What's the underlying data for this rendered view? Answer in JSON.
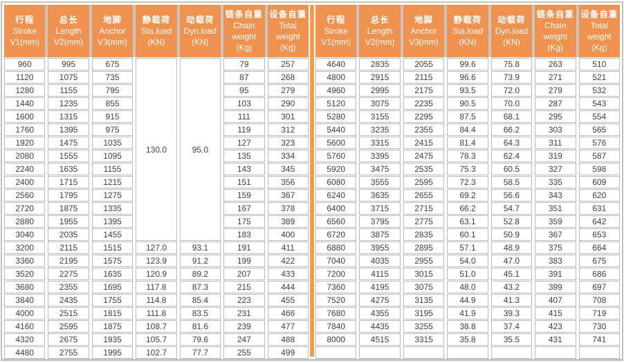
{
  "document_type": "load-specification-table",
  "colors": {
    "header_orange": "#F0924F",
    "divider_orange": "#F19C4F",
    "grid_gray": "#C6C6C6",
    "frame_gray": "#C2C2C2",
    "cell_border": "#B9B9B9",
    "text": "#3F3F3F",
    "header_text": "#FFFFFF"
  },
  "columns": [
    {
      "lines": [
        "行程",
        "Stroke",
        "V1(mm)"
      ]
    },
    {
      "lines": [
        "总长",
        "Length",
        "V2(mm)"
      ]
    },
    {
      "lines": [
        "地脚",
        "Anchor",
        "V3(mm)"
      ]
    },
    {
      "lines": [
        "静载荷",
        "Sta.load",
        "(KN)"
      ]
    },
    {
      "lines": [
        "动载荷",
        "Dyn.load",
        "(KN)"
      ]
    },
    {
      "lines": [
        "链条自重",
        "Chain",
        "weight",
        "(Kg)"
      ]
    },
    {
      "lines": [
        "设备自重",
        "Total",
        "weight",
        "(Kg)"
      ]
    }
  ],
  "left_table": {
    "merged_note": "Sta.load 130.0 and Dyn.load 95.0 span rows 1-14",
    "rows": [
      [
        "960",
        "995",
        "675",
        {
          "v": "130.0",
          "rowspan": 14
        },
        {
          "v": "95.0",
          "rowspan": 14
        },
        "79",
        "257"
      ],
      [
        "1120",
        "1075",
        "735",
        "87",
        "268"
      ],
      [
        "1280",
        "1155",
        "795",
        "95",
        "279"
      ],
      [
        "1440",
        "1235",
        "855",
        "103",
        "290"
      ],
      [
        "1600",
        "1315",
        "915",
        "111",
        "301"
      ],
      [
        "1760",
        "1395",
        "975",
        "119",
        "312"
      ],
      [
        "1920",
        "1475",
        "1035",
        "127",
        "323"
      ],
      [
        "2080",
        "1555",
        "1095",
        "135",
        "334"
      ],
      [
        "2240",
        "1635",
        "1155",
        "143",
        "345"
      ],
      [
        "2400",
        "1715",
        "1215",
        "151",
        "356"
      ],
      [
        "2560",
        "1795",
        "1275",
        "159",
        "367"
      ],
      [
        "2720",
        "1875",
        "1335",
        "167",
        "378"
      ],
      [
        "2880",
        "1955",
        "1395",
        "175",
        "389"
      ],
      [
        "3040",
        "2035",
        "1455",
        "183",
        "400"
      ],
      [
        "3200",
        "2115",
        "1515",
        "127.0",
        "93.1",
        "191",
        "411"
      ],
      [
        "3360",
        "2195",
        "1575",
        "123.9",
        "91.2",
        "199",
        "422"
      ],
      [
        "3520",
        "2275",
        "1635",
        "120.9",
        "89.2",
        "207",
        "433"
      ],
      [
        "3680",
        "2355",
        "1695",
        "117.8",
        "87.3",
        "215",
        "444"
      ],
      [
        "3840",
        "2435",
        "1755",
        "114.8",
        "85.4",
        "223",
        "455"
      ],
      [
        "4000",
        "2515",
        "1815",
        "111.8",
        "83.5",
        "231",
        "466"
      ],
      [
        "4160",
        "2595",
        "1875",
        "108.7",
        "81.6",
        "239",
        "477"
      ],
      [
        "4320",
        "2675",
        "1935",
        "105.7",
        "79.6",
        "247",
        "488"
      ],
      [
        "4480",
        "2755",
        "1995",
        "102.7",
        "77.7",
        "255",
        "499"
      ]
    ]
  },
  "right_table": {
    "rows": [
      [
        "4640",
        "2835",
        "2055",
        "99.6",
        "75.8",
        "263",
        "510"
      ],
      [
        "4800",
        "2915",
        "2115",
        "96.6",
        "73.9",
        "271",
        "521"
      ],
      [
        "4960",
        "2995",
        "2175",
        "93.5",
        "72.0",
        "279",
        "532"
      ],
      [
        "5120",
        "3075",
        "2235",
        "90.5",
        "70.0",
        "287",
        "543"
      ],
      [
        "5280",
        "3155",
        "2295",
        "87.5",
        "68.1",
        "295",
        "554"
      ],
      [
        "5440",
        "3235",
        "2355",
        "84.4",
        "66.2",
        "303",
        "565"
      ],
      [
        "5600",
        "3315",
        "2415",
        "81.4",
        "64.3",
        "311",
        "576"
      ],
      [
        "5760",
        "3395",
        "2475",
        "78.3",
        "62.4",
        "319",
        "587"
      ],
      [
        "5920",
        "3475",
        "2535",
        "75.3",
        "60.5",
        "327",
        "598"
      ],
      [
        "6080",
        "3555",
        "2595",
        "72.3",
        "58.5",
        "335",
        "609"
      ],
      [
        "6240",
        "3635",
        "2655",
        "69.2",
        "56.6",
        "343",
        "620"
      ],
      [
        "6400",
        "3715",
        "2715",
        "66.2",
        "54.7",
        "351",
        "631"
      ],
      [
        "6560",
        "3795",
        "2775",
        "63.1",
        "52.8",
        "359",
        "642"
      ],
      [
        "6720",
        "3875",
        "2835",
        "60.1",
        "50.9",
        "367",
        "653"
      ],
      [
        "6880",
        "3955",
        "2895",
        "57.1",
        "48.9",
        "375",
        "664"
      ],
      [
        "7040",
        "4035",
        "2955",
        "54.0",
        "47.0",
        "383",
        "675"
      ],
      [
        "7200",
        "4115",
        "3015",
        "51.0",
        "45.1",
        "391",
        "686"
      ],
      [
        "7360",
        "4195",
        "3075",
        "48.0",
        "43.2",
        "399",
        "697"
      ],
      [
        "7520",
        "4275",
        "3135",
        "44.9",
        "41.3",
        "407",
        "708"
      ],
      [
        "7680",
        "4355",
        "3195",
        "41.9",
        "39.3",
        "415",
        "719"
      ],
      [
        "7840",
        "4435",
        "3255",
        "38.8",
        "37.4",
        "423",
        "730"
      ],
      [
        "8000",
        "4515",
        "3315",
        "35.8",
        "35.5",
        "431",
        "741"
      ],
      [
        "",
        "",
        "",
        "",
        "",
        "",
        ""
      ]
    ]
  }
}
